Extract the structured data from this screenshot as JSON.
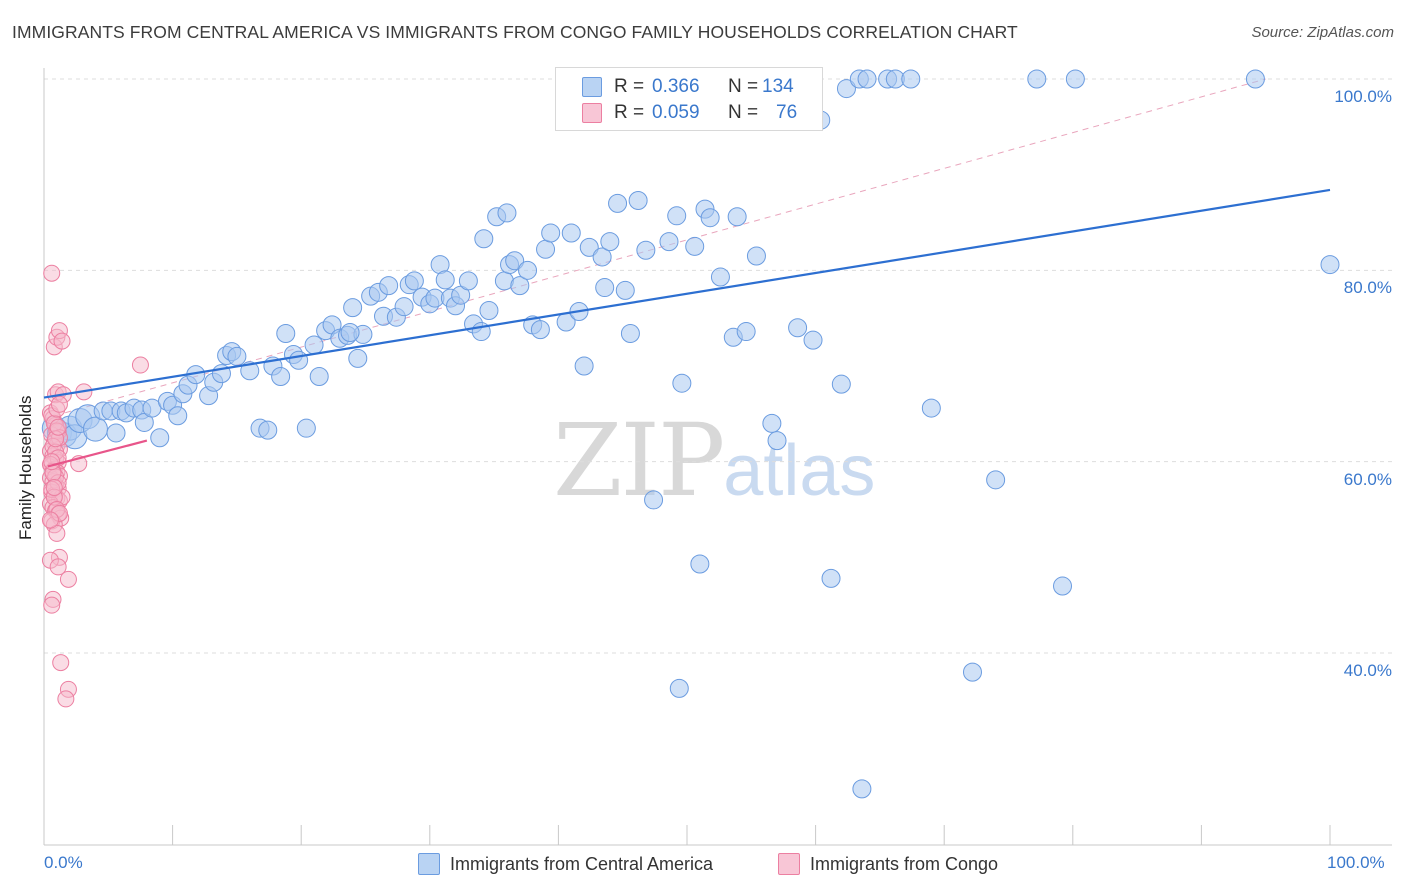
{
  "header": {
    "title": "IMMIGRANTS FROM CENTRAL AMERICA VS IMMIGRANTS FROM CONGO FAMILY HOUSEHOLDS CORRELATION CHART",
    "source": "Source: ZipAtlas.com"
  },
  "legend": {
    "rows": [
      {
        "r_label": "R =",
        "r_value": "0.366",
        "n_label": "N =",
        "n_value": "134"
      },
      {
        "r_label": "R =",
        "r_value": "0.059",
        "n_label": "N =",
        "n_value": "76"
      }
    ]
  },
  "watermark": {
    "zip": "ZIP",
    "atlas": "atlas"
  },
  "colors": {
    "blue_fill": "#a9c8f0",
    "blue_stroke": "#6b9ce0",
    "blue_line": "#2d6fd1",
    "pink_fill": "#f6b9cc",
    "pink_stroke": "#ec7fa1",
    "pink_line": "#e8558a",
    "tick_text": "#3a78cc",
    "grid": "#dddddd"
  },
  "chart_data": {
    "type": "scatter",
    "title": "IMMIGRANTS FROM CENTRAL AMERICA VS IMMIGRANTS FROM CONGO FAMILY HOUSEHOLDS CORRELATION CHART",
    "xlabel": "",
    "ylabel": "Family Households",
    "xlim": [
      0,
      100
    ],
    "ylim": [
      20,
      102
    ],
    "x_tick_labels": [
      "0.0%",
      "100.0%"
    ],
    "y_ticks": [
      40,
      60,
      80,
      100
    ],
    "y_tick_labels": [
      "40.0%",
      "60.0%",
      "80.0%",
      "100.0%"
    ],
    "grid": true,
    "legend_position": "top-center",
    "series": [
      {
        "name": "Immigrants from Central America",
        "color": "#a9c8f0",
        "r": 0.366,
        "n": 134,
        "trend": {
          "x": [
            0,
            100
          ],
          "y": [
            66.7,
            88.4
          ]
        },
        "points": [
          [
            0.8,
            63.5
          ],
          [
            1.2,
            63.0
          ],
          [
            1.6,
            62.8
          ],
          [
            2.0,
            63.5
          ],
          [
            2.4,
            62.6
          ],
          [
            2.8,
            64.3
          ],
          [
            3.4,
            64.7
          ],
          [
            4.0,
            63.4
          ],
          [
            4.6,
            65.3
          ],
          [
            5.2,
            65.3
          ],
          [
            5.6,
            63.0
          ],
          [
            6.0,
            65.3
          ],
          [
            6.4,
            65.1
          ],
          [
            7.0,
            65.6
          ],
          [
            7.6,
            65.4
          ],
          [
            7.8,
            64.1
          ],
          [
            8.4,
            65.6
          ],
          [
            9.0,
            62.5
          ],
          [
            9.6,
            66.3
          ],
          [
            10.0,
            65.9
          ],
          [
            10.4,
            64.8
          ],
          [
            10.8,
            67.1
          ],
          [
            11.2,
            68.0
          ],
          [
            11.8,
            69.1
          ],
          [
            12.8,
            66.9
          ],
          [
            13.2,
            68.3
          ],
          [
            13.8,
            69.2
          ],
          [
            14.2,
            71.1
          ],
          [
            14.6,
            71.5
          ],
          [
            15.0,
            71.0
          ],
          [
            16.0,
            69.5
          ],
          [
            16.8,
            63.5
          ],
          [
            17.4,
            63.3
          ],
          [
            17.8,
            70.0
          ],
          [
            18.4,
            68.9
          ],
          [
            18.8,
            73.4
          ],
          [
            19.4,
            71.2
          ],
          [
            19.8,
            70.6
          ],
          [
            20.4,
            63.5
          ],
          [
            21.0,
            72.2
          ],
          [
            21.4,
            68.9
          ],
          [
            21.9,
            73.7
          ],
          [
            22.4,
            74.3
          ],
          [
            23.0,
            72.9
          ],
          [
            23.6,
            73.2
          ],
          [
            24.0,
            76.1
          ],
          [
            24.4,
            70.8
          ],
          [
            24.8,
            73.3
          ],
          [
            25.4,
            77.3
          ],
          [
            26.0,
            77.7
          ],
          [
            26.4,
            75.2
          ],
          [
            26.8,
            78.4
          ],
          [
            27.4,
            75.1
          ],
          [
            28.0,
            76.2
          ],
          [
            28.4,
            78.5
          ],
          [
            28.8,
            78.9
          ],
          [
            29.4,
            77.2
          ],
          [
            30.0,
            76.5
          ],
          [
            30.4,
            77.1
          ],
          [
            30.8,
            80.6
          ],
          [
            31.2,
            79.0
          ],
          [
            31.6,
            77.1
          ],
          [
            32.0,
            76.3
          ],
          [
            32.4,
            77.4
          ],
          [
            33.0,
            78.9
          ],
          [
            33.4,
            74.4
          ],
          [
            34.0,
            73.6
          ],
          [
            34.2,
            83.3
          ],
          [
            34.6,
            75.8
          ],
          [
            35.2,
            85.6
          ],
          [
            35.8,
            78.9
          ],
          [
            36.2,
            80.6
          ],
          [
            36.6,
            81.0
          ],
          [
            37.0,
            78.4
          ],
          [
            37.6,
            80.0
          ],
          [
            38.0,
            74.3
          ],
          [
            38.6,
            73.8
          ],
          [
            39.0,
            82.2
          ],
          [
            39.4,
            83.9
          ],
          [
            40.6,
            74.6
          ],
          [
            41.0,
            83.9
          ],
          [
            41.6,
            75.7
          ],
          [
            42.0,
            70.0
          ],
          [
            42.4,
            82.4
          ],
          [
            43.4,
            81.4
          ],
          [
            43.6,
            78.2
          ],
          [
            44.0,
            83.0
          ],
          [
            44.6,
            87.0
          ],
          [
            45.2,
            77.9
          ],
          [
            45.6,
            73.4
          ],
          [
            46.2,
            87.3
          ],
          [
            46.8,
            82.1
          ],
          [
            47.4,
            56.0
          ],
          [
            47.8,
            95.6
          ],
          [
            48.0,
            100.0
          ],
          [
            48.6,
            83.0
          ],
          [
            49.2,
            85.7
          ],
          [
            49.6,
            68.2
          ],
          [
            50.6,
            82.5
          ],
          [
            51.0,
            49.3
          ],
          [
            51.4,
            86.4
          ],
          [
            51.8,
            85.5
          ],
          [
            52.6,
            79.3
          ],
          [
            53.6,
            73.0
          ],
          [
            53.9,
            85.6
          ],
          [
            54.6,
            73.6
          ],
          [
            55.4,
            81.5
          ],
          [
            56.0,
            100.0
          ],
          [
            56.6,
            64.0
          ],
          [
            57.0,
            62.2
          ],
          [
            57.6,
            96.5
          ],
          [
            58.6,
            74.0
          ],
          [
            59.8,
            72.7
          ],
          [
            60.4,
            95.7
          ],
          [
            61.2,
            47.8
          ],
          [
            62.0,
            68.1
          ],
          [
            62.4,
            99.0
          ],
          [
            63.4,
            100.0
          ],
          [
            64.0,
            100.0
          ],
          [
            65.6,
            100.0
          ],
          [
            66.2,
            100.0
          ],
          [
            67.4,
            100.0
          ],
          [
            69.0,
            65.6
          ],
          [
            72.2,
            38.0
          ],
          [
            74.0,
            58.1
          ],
          [
            77.2,
            100.0
          ],
          [
            79.2,
            47.0
          ],
          [
            80.2,
            100.0
          ],
          [
            94.2,
            100.0
          ],
          [
            100.0,
            80.6
          ],
          [
            49.4,
            36.3
          ],
          [
            63.6,
            25.8
          ],
          [
            23.8,
            73.5
          ],
          [
            36.0,
            86.0
          ]
        ]
      },
      {
        "name": "Immigrants from Congo",
        "color": "#f6b9cc",
        "r": 0.059,
        "n": 76,
        "trend": {
          "x": [
            0.3,
            8.0
          ],
          "y": [
            59.5,
            62.2
          ]
        },
        "points": [
          [
            0.6,
            79.7
          ],
          [
            0.8,
            72.0
          ],
          [
            1.0,
            73.0
          ],
          [
            1.2,
            73.7
          ],
          [
            1.4,
            72.6
          ],
          [
            0.9,
            67.0
          ],
          [
            1.1,
            67.3
          ],
          [
            1.5,
            67.0
          ],
          [
            0.5,
            65.1
          ],
          [
            0.7,
            64.5
          ],
          [
            0.9,
            63.8
          ],
          [
            1.1,
            63.1
          ],
          [
            0.6,
            62.8
          ],
          [
            0.8,
            62.0
          ],
          [
            1.0,
            61.7
          ],
          [
            1.2,
            61.3
          ],
          [
            0.5,
            61.1
          ],
          [
            0.7,
            60.6
          ],
          [
            0.9,
            60.3
          ],
          [
            1.1,
            59.9
          ],
          [
            0.6,
            59.6
          ],
          [
            0.8,
            59.2
          ],
          [
            1.0,
            58.9
          ],
          [
            1.2,
            58.5
          ],
          [
            0.5,
            58.3
          ],
          [
            0.7,
            57.9
          ],
          [
            0.9,
            57.5
          ],
          [
            1.1,
            57.2
          ],
          [
            0.6,
            56.8
          ],
          [
            0.8,
            56.5
          ],
          [
            1.0,
            56.2
          ],
          [
            1.2,
            55.9
          ],
          [
            1.4,
            56.3
          ],
          [
            0.5,
            55.6
          ],
          [
            0.7,
            55.2
          ],
          [
            0.9,
            54.9
          ],
          [
            1.1,
            54.5
          ],
          [
            1.3,
            54.1
          ],
          [
            0.6,
            53.8
          ],
          [
            0.8,
            53.4
          ],
          [
            1.0,
            52.5
          ],
          [
            1.2,
            50.0
          ],
          [
            0.5,
            49.7
          ],
          [
            1.1,
            49.0
          ],
          [
            1.9,
            47.7
          ],
          [
            0.7,
            45.6
          ],
          [
            0.6,
            45.0
          ],
          [
            1.3,
            39.0
          ],
          [
            1.9,
            36.2
          ],
          [
            1.7,
            35.2
          ],
          [
            2.7,
            59.8
          ],
          [
            3.1,
            67.3
          ],
          [
            7.5,
            70.1
          ],
          [
            0.6,
            64.8
          ],
          [
            0.8,
            64.0
          ],
          [
            1.0,
            63.2
          ],
          [
            1.2,
            62.5
          ],
          [
            0.7,
            61.6
          ],
          [
            0.9,
            61.0
          ],
          [
            1.1,
            60.4
          ],
          [
            0.5,
            59.7
          ],
          [
            0.7,
            59.0
          ],
          [
            0.9,
            58.4
          ],
          [
            1.1,
            57.8
          ],
          [
            0.6,
            57.1
          ],
          [
            0.8,
            56.3
          ],
          [
            1.0,
            55.0
          ],
          [
            1.2,
            54.6
          ],
          [
            0.5,
            53.9
          ],
          [
            0.7,
            58.8
          ],
          [
            0.9,
            62.4
          ],
          [
            1.1,
            63.6
          ],
          [
            0.6,
            60.0
          ],
          [
            0.8,
            57.3
          ],
          [
            1.0,
            65.5
          ],
          [
            1.2,
            66.0
          ]
        ]
      }
    ],
    "reference_line": {
      "x": [
        0,
        95
      ],
      "y": [
        64.5,
        100
      ]
    }
  },
  "bottom_legend": {
    "items": [
      {
        "label": "Immigrants from Central America"
      },
      {
        "label": "Immigrants from Congo"
      }
    ]
  }
}
